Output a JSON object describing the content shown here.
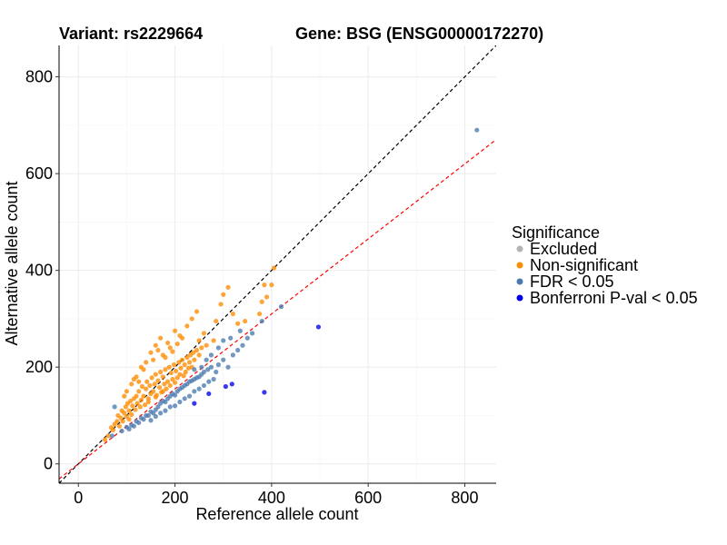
{
  "titles": {
    "variant": "Variant: rs2229664",
    "gene": "Gene: BSG (ENSG00000172270)"
  },
  "chart_data": {
    "type": "scatter",
    "xlabel": "Reference allele count",
    "ylabel": "Alternative allele count",
    "xlim": [
      -40,
      865
    ],
    "ylim": [
      -40,
      865
    ],
    "xticks": [
      0,
      200,
      400,
      600,
      800
    ],
    "yticks": [
      0,
      200,
      400,
      600,
      800
    ],
    "grid": true,
    "reference_lines": [
      {
        "name": "identity",
        "slope": 1.0,
        "intercept": 0,
        "color": "#000000",
        "dash": "dashed"
      },
      {
        "name": "fit",
        "slope": 0.775,
        "intercept": 0,
        "color": "#ff0000",
        "dash": "dashed"
      }
    ],
    "legend": {
      "title": "Significance",
      "position": "right",
      "entries": [
        {
          "label": "Excluded",
          "color": "#b3b3b3"
        },
        {
          "label": "Non-significant",
          "color": "#ff8c00"
        },
        {
          "label": "FDR < 0.05",
          "color": "#4a7ab0"
        },
        {
          "label": "Bonferroni P-val < 0.05",
          "color": "#0000ee"
        }
      ]
    },
    "series": [
      {
        "name": "Non-significant",
        "color": "#ff8c00",
        "points": [
          [
            55,
            50
          ],
          [
            62,
            58
          ],
          [
            68,
            75
          ],
          [
            72,
            70
          ],
          [
            75,
            82
          ],
          [
            80,
            88
          ],
          [
            82,
            100
          ],
          [
            85,
            78
          ],
          [
            88,
            95
          ],
          [
            90,
            110
          ],
          [
            92,
            88
          ],
          [
            95,
            105
          ],
          [
            98,
            118
          ],
          [
            100,
            98
          ],
          [
            102,
            125
          ],
          [
            105,
            110
          ],
          [
            108,
            130
          ],
          [
            110,
            102
          ],
          [
            112,
            120
          ],
          [
            115,
            135
          ],
          [
            118,
            112
          ],
          [
            120,
            140
          ],
          [
            122,
            125
          ],
          [
            125,
            150
          ],
          [
            128,
            118
          ],
          [
            130,
            132
          ],
          [
            132,
            160
          ],
          [
            135,
            140
          ],
          [
            138,
            122
          ],
          [
            140,
            155
          ],
          [
            142,
            170
          ],
          [
            145,
            135
          ],
          [
            148,
            162
          ],
          [
            150,
            145
          ],
          [
            152,
            178
          ],
          [
            155,
            150
          ],
          [
            158,
            165
          ],
          [
            160,
            185
          ],
          [
            162,
            142
          ],
          [
            165,
            172
          ],
          [
            168,
            158
          ],
          [
            170,
            190
          ],
          [
            172,
            148
          ],
          [
            175,
            180
          ],
          [
            178,
            165
          ],
          [
            180,
            195
          ],
          [
            182,
            155
          ],
          [
            185,
            170
          ],
          [
            188,
            200
          ],
          [
            190,
            162
          ],
          [
            192,
            188
          ],
          [
            195,
            175
          ],
          [
            198,
            205
          ],
          [
            200,
            168
          ],
          [
            202,
            192
          ],
          [
            205,
            178
          ],
          [
            208,
            210
          ],
          [
            210,
            185
          ],
          [
            212,
            198
          ],
          [
            215,
            215
          ],
          [
            218,
            182
          ],
          [
            220,
            205
          ],
          [
            222,
            190
          ],
          [
            225,
            220
          ],
          [
            228,
            198
          ],
          [
            230,
            210
          ],
          [
            232,
            225
          ],
          [
            235,
            200
          ],
          [
            238,
            230
          ],
          [
            240,
            215
          ],
          [
            245,
            235
          ],
          [
            250,
            225
          ],
          [
            255,
            240
          ],
          [
            265,
            245
          ],
          [
            280,
            255
          ],
          [
            150,
            230
          ],
          [
            160,
            245
          ],
          [
            170,
            260
          ],
          [
            185,
            250
          ],
          [
            200,
            275
          ],
          [
            210,
            265
          ],
          [
            225,
            285
          ],
          [
            235,
            300
          ],
          [
            245,
            315
          ],
          [
            120,
            180
          ],
          [
            135,
            195
          ],
          [
            110,
            165
          ],
          [
            125,
            170
          ],
          [
            140,
            210
          ],
          [
            175,
            225
          ],
          [
            190,
            240
          ],
          [
            205,
            248
          ],
          [
            215,
            260
          ],
          [
            250,
            255
          ],
          [
            260,
            270
          ],
          [
            285,
            295
          ],
          [
            295,
            330
          ],
          [
            300,
            350
          ],
          [
            310,
            365
          ],
          [
            320,
            310
          ],
          [
            330,
            290
          ],
          [
            345,
            295
          ],
          [
            375,
            310
          ],
          [
            380,
            335
          ],
          [
            385,
            370
          ],
          [
            390,
            345
          ],
          [
            400,
            370
          ],
          [
            405,
            405
          ],
          [
            95,
            140
          ],
          [
            100,
            150
          ],
          [
            115,
            175
          ],
          [
            130,
            200
          ],
          [
            155,
            215
          ],
          [
            165,
            235
          ],
          [
            180,
            220
          ],
          [
            195,
            232
          ],
          [
            105,
            92
          ],
          [
            145,
            128
          ],
          [
            160,
            138
          ],
          [
            175,
            150
          ]
        ]
      },
      {
        "name": "FDR < 0.05",
        "color": "#4a7ab0",
        "points": [
          [
            70,
            58
          ],
          [
            75,
            118
          ],
          [
            90,
            68
          ],
          [
            100,
            76
          ],
          [
            110,
            80
          ],
          [
            120,
            88
          ],
          [
            130,
            95
          ],
          [
            140,
            100
          ],
          [
            150,
            108
          ],
          [
            160,
            112
          ],
          [
            165,
            118
          ],
          [
            170,
            125
          ],
          [
            175,
            130
          ],
          [
            180,
            128
          ],
          [
            185,
            135
          ],
          [
            190,
            140
          ],
          [
            195,
            145
          ],
          [
            200,
            142
          ],
          [
            205,
            150
          ],
          [
            210,
            155
          ],
          [
            215,
            158
          ],
          [
            220,
            162
          ],
          [
            225,
            165
          ],
          [
            230,
            170
          ],
          [
            235,
            172
          ],
          [
            240,
            175
          ],
          [
            245,
            178
          ],
          [
            250,
            180
          ],
          [
            255,
            185
          ],
          [
            260,
            190
          ],
          [
            268,
            195
          ],
          [
            275,
            200
          ],
          [
            285,
            190
          ],
          [
            290,
            205
          ],
          [
            300,
            215
          ],
          [
            310,
            200
          ],
          [
            320,
            225
          ],
          [
            330,
            235
          ],
          [
            340,
            245
          ],
          [
            350,
            260
          ],
          [
            360,
            270
          ],
          [
            380,
            295
          ],
          [
            420,
            325
          ],
          [
            150,
            90
          ],
          [
            160,
            98
          ],
          [
            170,
            105
          ],
          [
            180,
            110
          ],
          [
            190,
            118
          ],
          [
            200,
            120
          ],
          [
            210,
            128
          ],
          [
            220,
            135
          ],
          [
            230,
            140
          ],
          [
            240,
            150
          ],
          [
            250,
            155
          ],
          [
            260,
            162
          ],
          [
            270,
            170
          ],
          [
            280,
            175
          ],
          [
            135,
            92
          ],
          [
            145,
            100
          ],
          [
            155,
            105
          ],
          [
            125,
            85
          ],
          [
            115,
            78
          ],
          [
            105,
            72
          ],
          [
            240,
            195
          ],
          [
            255,
            200
          ],
          [
            265,
            215
          ],
          [
            275,
            225
          ],
          [
            290,
            240
          ],
          [
            300,
            255
          ],
          [
            315,
            260
          ],
          [
            335,
            275
          ],
          [
            825,
            690
          ]
        ]
      },
      {
        "name": "Bonferroni P-val < 0.05",
        "color": "#0000ee",
        "points": [
          [
            240,
            125
          ],
          [
            270,
            145
          ],
          [
            305,
            160
          ],
          [
            318,
            165
          ],
          [
            385,
            148
          ],
          [
            497,
            283
          ]
        ]
      }
    ]
  }
}
